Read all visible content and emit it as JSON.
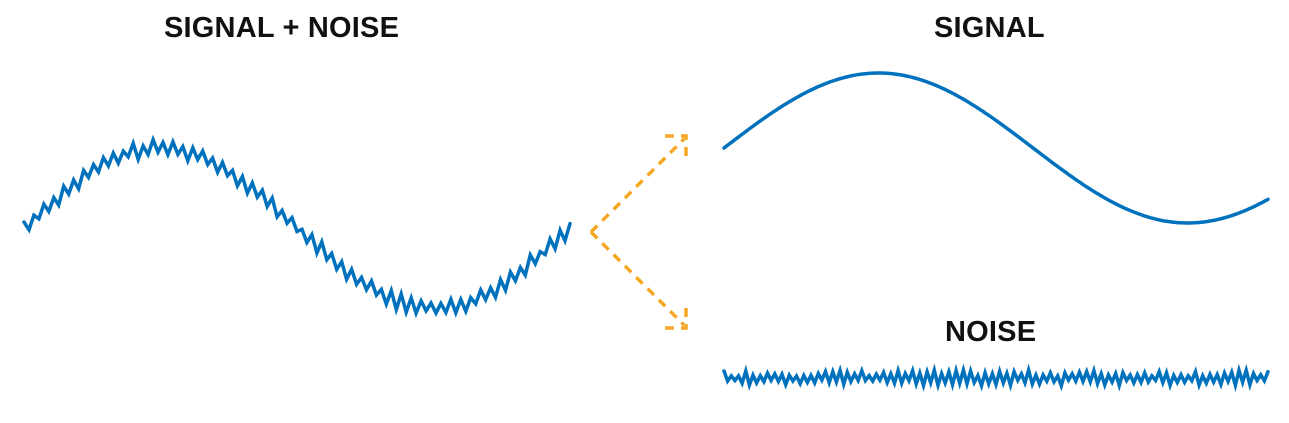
{
  "labels": {
    "combined": "SIGNAL + NOISE",
    "signal": "SIGNAL",
    "noise": "NOISE"
  },
  "colors": {
    "wave": "#0072bd",
    "arrow": "#f5a623",
    "text": "#111111"
  }
}
